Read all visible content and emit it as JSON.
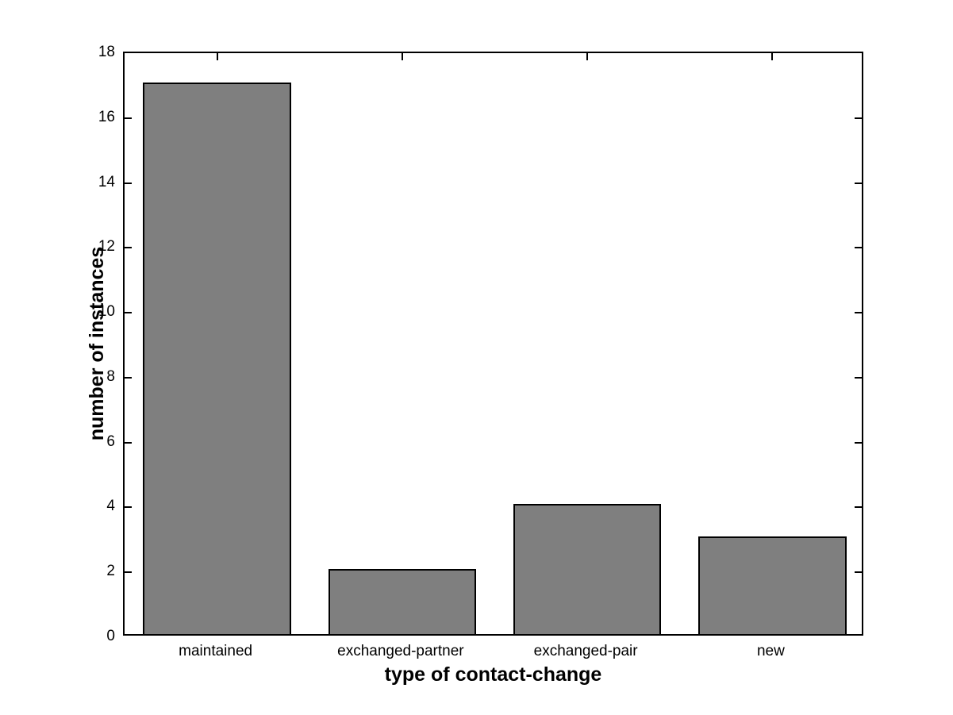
{
  "chart_data": {
    "type": "bar",
    "categories": [
      "maintained",
      "exchanged-partner",
      "exchanged-pair",
      "new"
    ],
    "values": [
      17,
      2,
      4,
      3
    ],
    "title": "",
    "xlabel": "type of contact-change",
    "ylabel": "number of instances",
    "ylim": [
      0,
      18
    ],
    "ytick_step": 2,
    "ytick_labels": [
      "0",
      "2",
      "4",
      "6",
      "8",
      "10",
      "12",
      "14",
      "16",
      "18"
    ],
    "bar_width_fraction": 0.8,
    "grid": false,
    "legend_position": "none",
    "colors": {
      "bar_fill": "#7f7f7f",
      "bar_edge": "#000000",
      "axis": "#000000",
      "background": "#ffffff",
      "text": "#000000"
    }
  }
}
